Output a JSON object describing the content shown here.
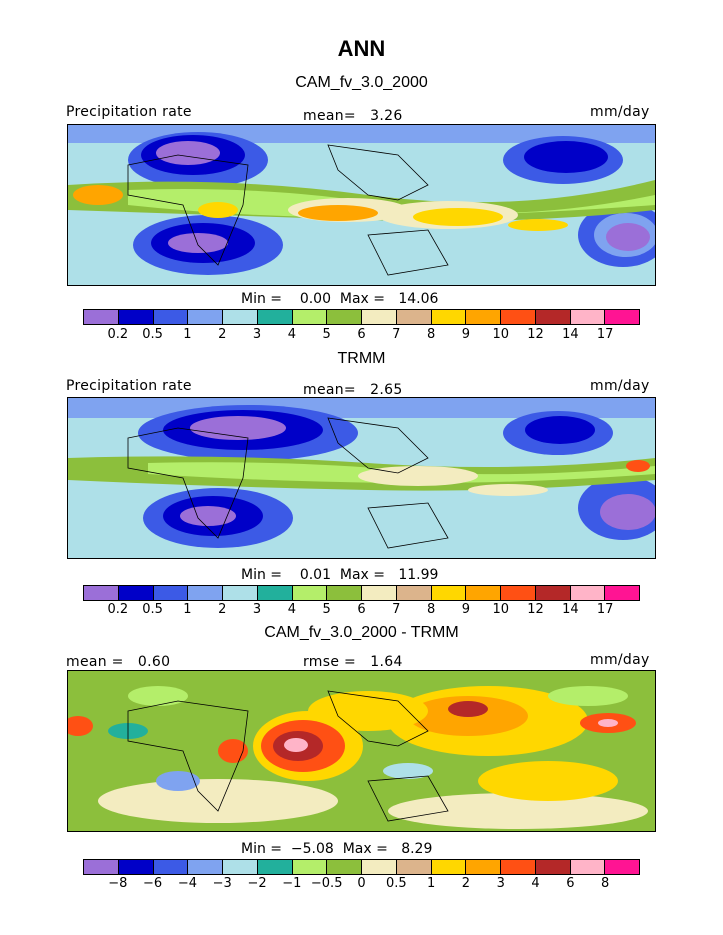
{
  "title": "ANN",
  "panels": [
    {
      "title": "CAM_fv_3.0_2000",
      "left_label": "Precipitation rate",
      "center_label": "mean=   3.26",
      "right_label": "mm/day",
      "stats": "Min =    0.00  Max =   14.06",
      "min": 0.0,
      "max": 14.06,
      "mean": 3.26
    },
    {
      "title": "TRMM",
      "left_label": "Precipitation rate",
      "center_label": "mean=   2.65",
      "right_label": "mm/day",
      "stats": "Min =    0.01  Max =   11.99",
      "min": 0.01,
      "max": 11.99,
      "mean": 2.65
    },
    {
      "title": "CAM_fv_3.0_2000 - TRMM",
      "left_label": "mean =   0.60",
      "center_label": "rmse =   1.64",
      "right_label": "mm/day",
      "stats": "Min =  −5.08  Max =   8.29",
      "min": -5.08,
      "max": 8.29,
      "mean": 0.6,
      "rmse": 1.64
    }
  ],
  "precip_colors": [
    "#9b6fd8",
    "#0000c8",
    "#3c5ae6",
    "#7fa3f0",
    "#aee0e8",
    "#22b09c",
    "#b4ee6a",
    "#8cbf3c",
    "#f3ecc0",
    "#dcb48c",
    "#ffd700",
    "#ffa500",
    "#ff5014",
    "#b42828",
    "#ffb4c8",
    "#ff1493"
  ],
  "precip_ticks": [
    "0.2",
    "0.5",
    "1",
    "2",
    "3",
    "4",
    "5",
    "6",
    "7",
    "8",
    "9",
    "10",
    "12",
    "14",
    "17"
  ],
  "diff_colors": [
    "#9b6fd8",
    "#0000c8",
    "#3c5ae6",
    "#7fa3f0",
    "#aee0e8",
    "#22b09c",
    "#b4ee6a",
    "#8cbf3c",
    "#f3ecc0",
    "#dcb48c",
    "#ffd700",
    "#ffa500",
    "#ff5014",
    "#b42828",
    "#ffb4c8",
    "#ff1493"
  ],
  "diff_ticks": [
    "−8",
    "−6",
    "−4",
    "−3",
    "−2",
    "−1",
    "−0.5",
    "0",
    "0.5",
    "1",
    "2",
    "3",
    "4",
    "6",
    "8"
  ]
}
